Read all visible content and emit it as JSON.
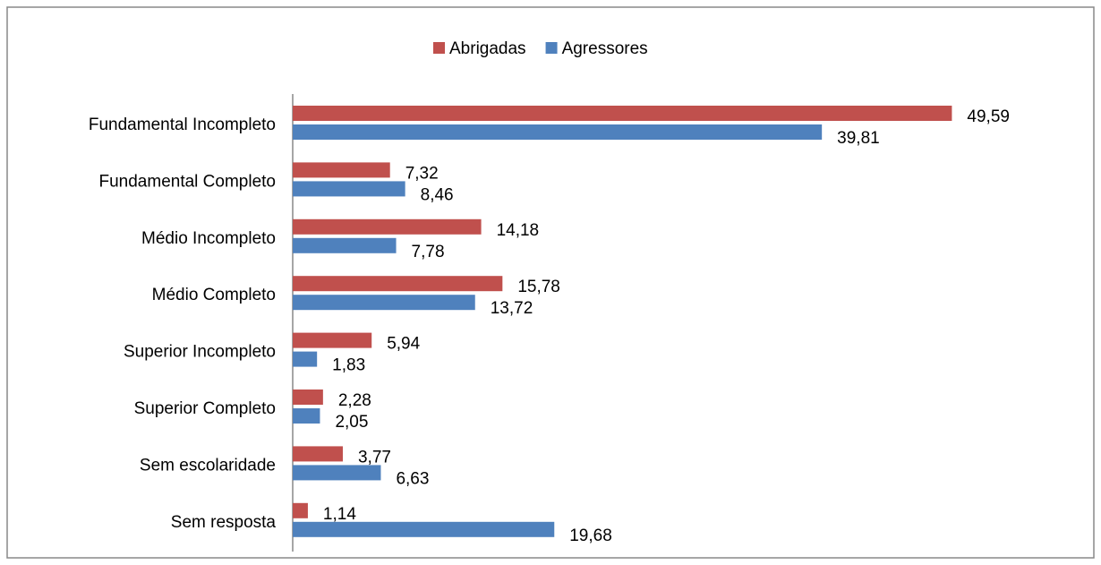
{
  "chart_data": {
    "type": "hbar",
    "categories": [
      "Fundamental Incompleto",
      "Fundamental Completo",
      "Médio Incompleto",
      "Médio Completo",
      "Superior Incompleto",
      "Superior Completo",
      "Sem escolaridade",
      "Sem resposta"
    ],
    "series": [
      {
        "name": "Abrigadas",
        "color": "#c0504d",
        "values": [
          49.59,
          7.32,
          14.18,
          15.78,
          5.94,
          2.28,
          3.77,
          1.14
        ],
        "value_labels": [
          "49,59",
          "7,32",
          "14,18",
          "15,78",
          "5,94",
          "2,28",
          "3,77",
          "1,14"
        ]
      },
      {
        "name": "Agressores",
        "color": "#4f81bd",
        "values": [
          39.81,
          8.46,
          7.78,
          13.72,
          1.83,
          2.05,
          6.63,
          19.68
        ],
        "value_labels": [
          "39,81",
          "8,46",
          "7,78",
          "13,72",
          "1,83",
          "2,05",
          "6,63",
          "19,68"
        ]
      }
    ],
    "xlim": [
      0,
      60
    ],
    "legend": "top"
  }
}
